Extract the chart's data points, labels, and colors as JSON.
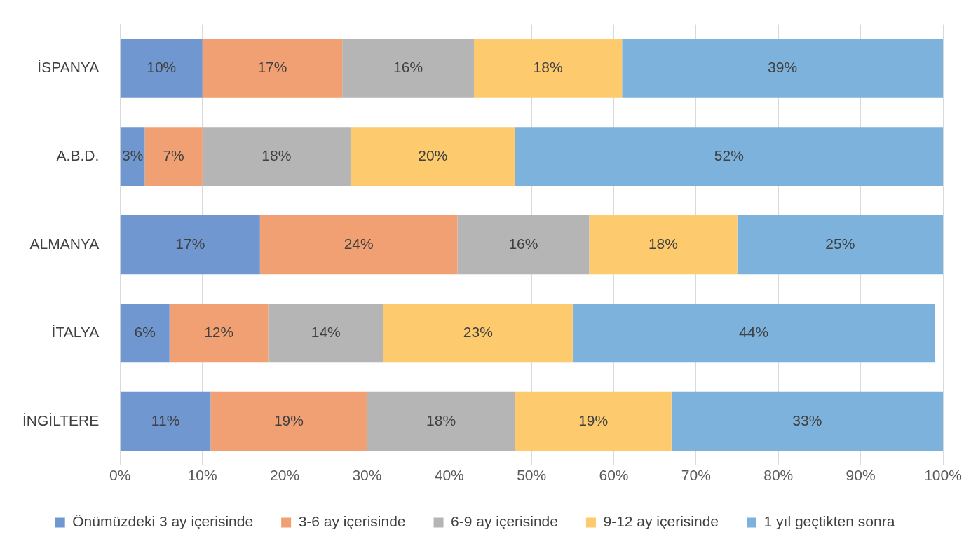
{
  "chart_data": {
    "type": "bar",
    "orientation": "horizontal",
    "stacked": true,
    "categories": [
      "İSPANYA",
      "A.B.D.",
      "ALMANYA",
      "İTALYA",
      "İNGİLTERE"
    ],
    "series": [
      {
        "name": "Önümüzdeki 3 ay içerisinde",
        "color": "#7097cf",
        "values": [
          10,
          3,
          17,
          6,
          11
        ],
        "value_labels": [
          "10%",
          "3%",
          "17%",
          "6%",
          "11%"
        ]
      },
      {
        "name": "3-6 ay içerisinde",
        "color": "#f0a072",
        "values": [
          17,
          7,
          24,
          12,
          19
        ],
        "value_labels": [
          "17%",
          "7%",
          "24%",
          "12%",
          "19%"
        ]
      },
      {
        "name": "6-9 ay içerisinde",
        "color": "#b5b5b5",
        "values": [
          16,
          18,
          16,
          14,
          18
        ],
        "value_labels": [
          "16%",
          "18%",
          "16%",
          "14%",
          "18%"
        ]
      },
      {
        "name": "9-12 ay içerisinde",
        "color": "#fdcb6e",
        "values": [
          18,
          20,
          18,
          23,
          19
        ],
        "value_labels": [
          "18%",
          "20%",
          "18%",
          "23%",
          "19%"
        ]
      },
      {
        "name": "1 yıl geçtikten sonra",
        "color": "#7db2dd",
        "values": [
          39,
          52,
          25,
          44,
          33
        ],
        "value_labels": [
          "39%",
          "52%",
          "25%",
          "44%",
          "33%"
        ]
      }
    ],
    "xlim": [
      0,
      100
    ],
    "xticks": [
      {
        "value": 0,
        "label": "0%"
      },
      {
        "value": 10,
        "label": "10%"
      },
      {
        "value": 20,
        "label": "20%"
      },
      {
        "value": 30,
        "label": "30%"
      },
      {
        "value": 40,
        "label": "40%"
      },
      {
        "value": 50,
        "label": "50%"
      },
      {
        "value": 60,
        "label": "60%"
      },
      {
        "value": 70,
        "label": "70%"
      },
      {
        "value": 80,
        "label": "80%"
      },
      {
        "value": 90,
        "label": "90%"
      },
      {
        "value": 100,
        "label": "100%"
      }
    ],
    "grid": "x",
    "legend": "bottom"
  }
}
